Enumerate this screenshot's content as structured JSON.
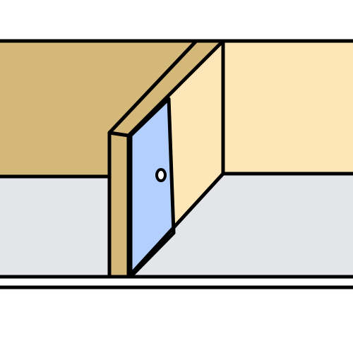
{
  "scene": {
    "colors": {
      "background": "#ffffff",
      "outline": "#000000",
      "back_wall": "#d4b87a",
      "right_wall": "#fde6b8",
      "partition_front": "#fde6b8",
      "partition_edge": "#d4b87a",
      "floor": "#e4e5e8",
      "door": "#b3cffe",
      "doorknob": "#ffffff"
    },
    "objects": {
      "back_wall": "wall",
      "right_wall": "wall",
      "floor": "floor",
      "partition_wall": "partition",
      "door": "door",
      "doorknob": "knob"
    }
  }
}
